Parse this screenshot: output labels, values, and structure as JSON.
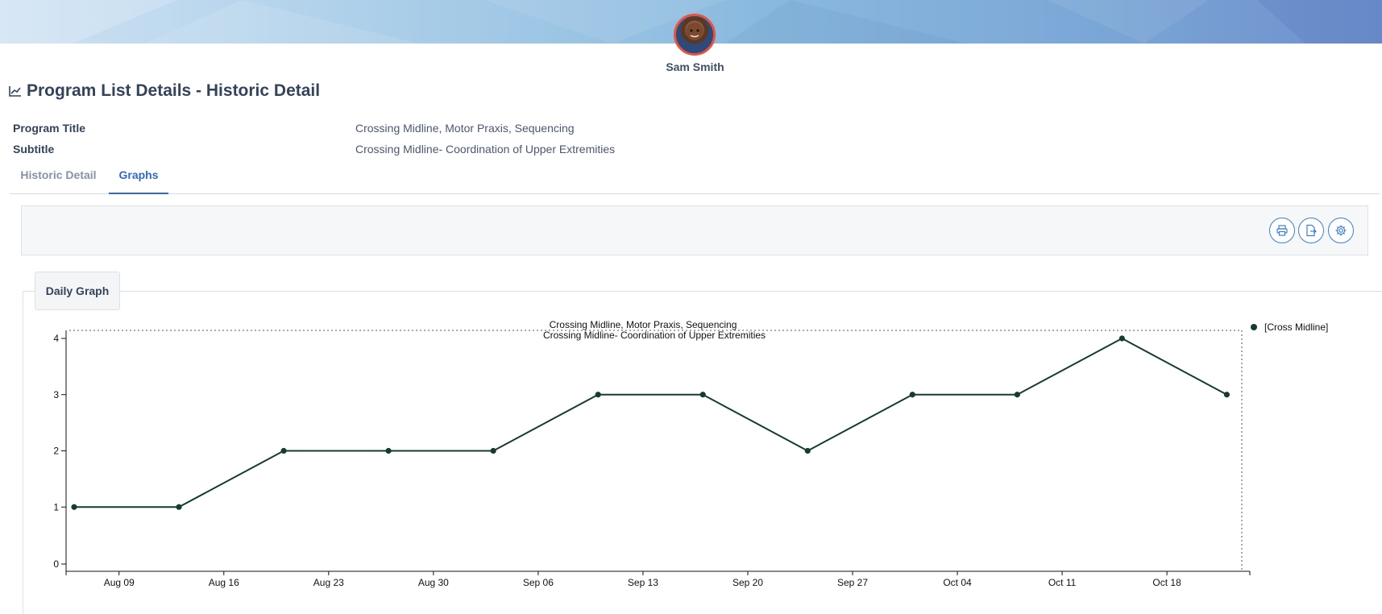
{
  "header": {
    "user_name": "Sam Smith",
    "avatar_icon": "child-avatar"
  },
  "page": {
    "title": "Program List Details - Historic Detail",
    "title_icon": "line-chart-icon"
  },
  "info": {
    "program_title_label": "Program Title",
    "program_title_value": "Crossing Midline, Motor Praxis, Sequencing",
    "subtitle_label": "Subtitle",
    "subtitle_value": "Crossing Midline- Coordination of Upper Extremities"
  },
  "tabs": [
    {
      "label": "Historic Detail",
      "active": false
    },
    {
      "label": "Graphs",
      "active": true
    }
  ],
  "toolbar": {
    "icons": [
      "print-icon",
      "export-file-icon",
      "settings-gear-icon"
    ],
    "accent": "#3d7fd6"
  },
  "graph_panel": {
    "tab_label": "Daily Graph"
  },
  "chart_data": {
    "type": "line",
    "title": "Crossing Midline, Motor Praxis, Sequencing",
    "subtitle": "Crossing Midline- Coordination of Upper Extremities",
    "x_ticks": [
      "Aug 09",
      "Aug 16",
      "Aug 23",
      "Aug 30",
      "Sep 06",
      "Sep 13",
      "Sep 20",
      "Sep 27",
      "Oct 04",
      "Oct 11",
      "Oct 18"
    ],
    "y_ticks": [
      "0",
      "1",
      "2",
      "3",
      "4"
    ],
    "ylim": [
      0,
      4
    ],
    "xlim": [
      "2021-08-06",
      "2021-10-23"
    ],
    "series": [
      {
        "name": "[Cross Midline]",
        "color": "#143d2c",
        "points": [
          {
            "x": "2021-08-06",
            "y": 1
          },
          {
            "x": "2021-08-13",
            "y": 1
          },
          {
            "x": "2021-08-20",
            "y": 2
          },
          {
            "x": "2021-08-27",
            "y": 2
          },
          {
            "x": "2021-09-03",
            "y": 2
          },
          {
            "x": "2021-09-10",
            "y": 3
          },
          {
            "x": "2021-09-17",
            "y": 3
          },
          {
            "x": "2021-09-24",
            "y": 2
          },
          {
            "x": "2021-10-01",
            "y": 3
          },
          {
            "x": "2021-10-08",
            "y": 3
          },
          {
            "x": "2021-10-15",
            "y": 4
          },
          {
            "x": "2021-10-22",
            "y": 3
          }
        ]
      }
    ],
    "legend_position": "top-right",
    "grid": false
  }
}
